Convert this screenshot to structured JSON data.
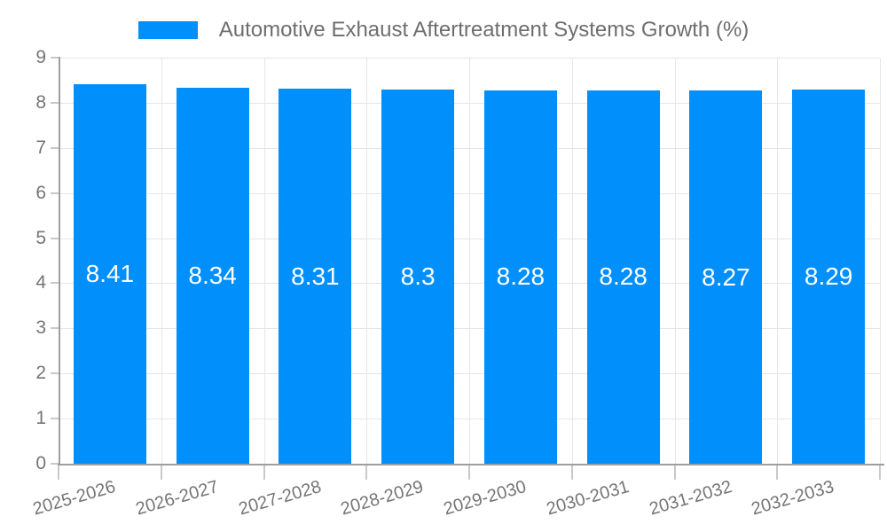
{
  "chart_data": {
    "type": "bar",
    "title": "Automotive Exhaust Aftertreatment Systems Growth (%)",
    "legend_position": "top-center",
    "categories": [
      "2025-2026",
      "2026-2027",
      "2027-2028",
      "2028-2029",
      "2029-2030",
      "2030-2031",
      "2031-2032",
      "2032-2033"
    ],
    "values": [
      8.41,
      8.34,
      8.31,
      8.3,
      8.28,
      8.28,
      8.27,
      8.29
    ],
    "value_labels": [
      "8.41",
      "8.34",
      "8.31",
      "8.3",
      "8.28",
      "8.28",
      "8.27",
      "8.29"
    ],
    "xlabel": "",
    "ylabel": "",
    "ylim": [
      0,
      9
    ],
    "yticks": [
      0,
      1,
      2,
      3,
      4,
      5,
      6,
      7,
      8,
      9
    ],
    "grid": true,
    "colors": {
      "bar": "#008FFB",
      "value_label": "#ffffff",
      "axis_label": "#757575",
      "legend_text": "#6e6e6e",
      "gridline": "#e6e6e6",
      "axis_line": "#9e9e9e",
      "tick": "#c9c9c9",
      "background": "#ffffff"
    }
  }
}
